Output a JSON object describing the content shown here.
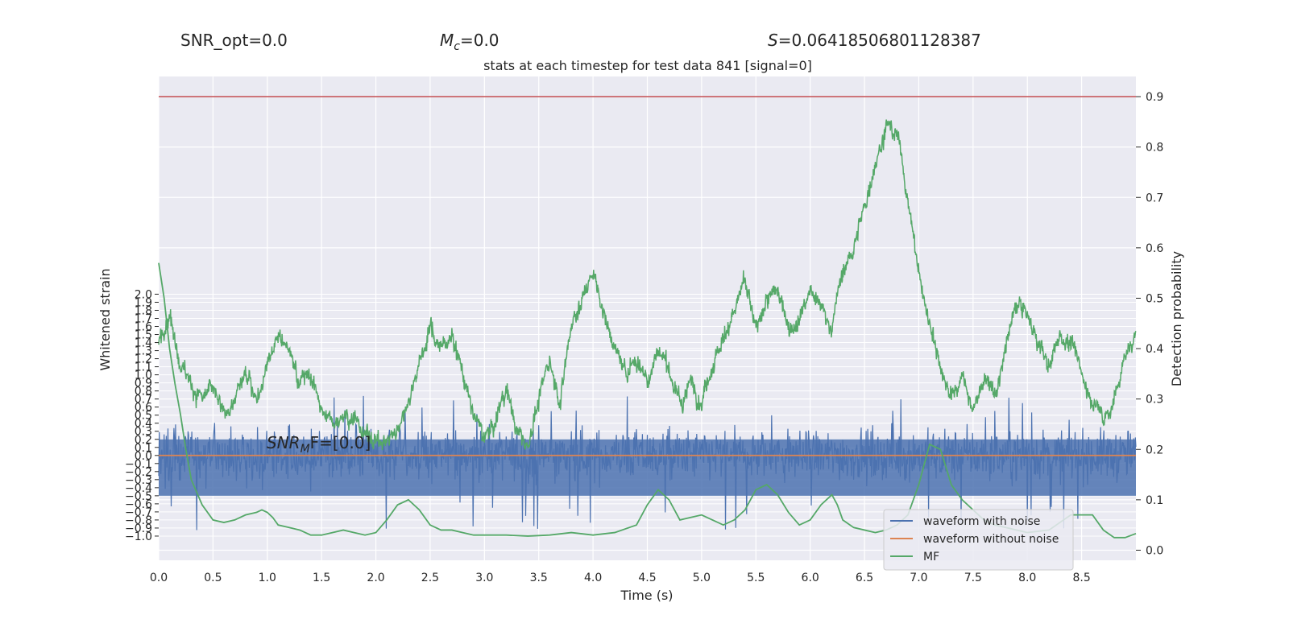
{
  "header": {
    "snr_opt": "SNR_opt=0.0",
    "mc_symbol": "M",
    "mc_sub": "c",
    "mc_value": "=0.0",
    "s_symbol": "S",
    "s_value": "=0.06418506801128387"
  },
  "chart_data": {
    "type": "line",
    "title": "stats at each timestep for test data 841 [signal=0]",
    "xlabel": "Time (s)",
    "ylabel_left": "Whitened strain",
    "ylabel_right": "Detection probability",
    "annotation": {
      "base": "SNR",
      "sub": "M",
      "tail": "F=[0.0]"
    },
    "xlim": [
      0.0,
      9.0
    ],
    "ylim_left": [
      -1.3,
      4.7
    ],
    "ylim_right": [
      -0.02,
      0.94
    ],
    "x_ticks": [
      "0.0",
      "0.5",
      "1.0",
      "1.5",
      "2.0",
      "2.5",
      "3.0",
      "3.5",
      "4.0",
      "4.5",
      "5.0",
      "5.5",
      "6.0",
      "6.5",
      "7.0",
      "7.5",
      "8.0",
      "8.5"
    ],
    "left_ticks": [
      "-1.0",
      "-0.9",
      "-0.8",
      "-0.7",
      "-0.6",
      "-0.5",
      "-0.4",
      "-0.3",
      "-0.2",
      "-0.1",
      "0.0",
      "0.1",
      "0.2",
      "0.3",
      "0.4",
      "0.5",
      "0.6",
      "0.7",
      "0.8",
      "0.9",
      "1.0",
      "1.1",
      "1.2",
      "1.3",
      "1.4",
      "1.5",
      "1.6",
      "1.7",
      "1.8",
      "1.9",
      "2.0"
    ],
    "right_ticks": [
      "0.0",
      "0.1",
      "0.2",
      "0.3",
      "0.4",
      "0.5",
      "0.6",
      "0.7",
      "0.8",
      "0.9"
    ],
    "threshold": 0.9,
    "legend": {
      "placement": "lower-right",
      "entries": [
        "waveform with noise",
        "waveform without noise",
        "MF"
      ]
    },
    "grid": true,
    "colors": {
      "noisy": "#4c72b0",
      "clean": "#dd8452",
      "mf": "#55a868",
      "threshold": "#c44e52",
      "background": "#eaeaf2"
    },
    "series": [
      {
        "name": "waveform with noise",
        "axis": "left",
        "kind": "dense-noise",
        "typical_range": [
          -0.35,
          0.35
        ],
        "peak_range": [
          -0.95,
          0.75
        ]
      },
      {
        "name": "waveform without noise",
        "axis": "left",
        "x": [
          0.0,
          9.0
        ],
        "y": [
          0.0,
          0.0
        ]
      },
      {
        "name": "MF",
        "axis": "right",
        "x": [
          0.0,
          0.05,
          0.1,
          0.15,
          0.2,
          0.25,
          0.3,
          0.4,
          0.5,
          0.6,
          0.7,
          0.8,
          0.9,
          0.95,
          1.0,
          1.05,
          1.1,
          1.2,
          1.3,
          1.4,
          1.5,
          1.6,
          1.7,
          1.8,
          1.9,
          2.0,
          2.1,
          2.2,
          2.3,
          2.4,
          2.5,
          2.6,
          2.7,
          2.8,
          2.9,
          3.0,
          3.2,
          3.4,
          3.6,
          3.8,
          4.0,
          4.2,
          4.4,
          4.5,
          4.6,
          4.7,
          4.8,
          4.9,
          5.0,
          5.1,
          5.2,
          5.3,
          5.4,
          5.5,
          5.6,
          5.7,
          5.8,
          5.9,
          6.0,
          6.1,
          6.2,
          6.25,
          6.3,
          6.4,
          6.5,
          6.6,
          6.7,
          6.8,
          6.9,
          7.0,
          7.1,
          7.2,
          7.3,
          7.4,
          7.5,
          7.6,
          7.7,
          7.8,
          7.9,
          8.0,
          8.2,
          8.4,
          8.6,
          8.7,
          8.8,
          8.9,
          9.0
        ],
        "y": [
          0.57,
          0.5,
          0.4,
          0.33,
          0.27,
          0.2,
          0.14,
          0.09,
          0.06,
          0.055,
          0.06,
          0.07,
          0.075,
          0.08,
          0.075,
          0.065,
          0.05,
          0.045,
          0.04,
          0.03,
          0.03,
          0.035,
          0.04,
          0.035,
          0.03,
          0.035,
          0.06,
          0.09,
          0.1,
          0.08,
          0.05,
          0.04,
          0.04,
          0.035,
          0.03,
          0.03,
          0.03,
          0.028,
          0.03,
          0.035,
          0.03,
          0.035,
          0.05,
          0.09,
          0.12,
          0.1,
          0.06,
          0.065,
          0.07,
          0.06,
          0.05,
          0.06,
          0.08,
          0.12,
          0.13,
          0.11,
          0.075,
          0.05,
          0.06,
          0.09,
          0.11,
          0.09,
          0.06,
          0.045,
          0.04,
          0.035,
          0.04,
          0.05,
          0.07,
          0.13,
          0.21,
          0.2,
          0.13,
          0.1,
          0.08,
          0.06,
          0.05,
          0.045,
          0.04,
          0.035,
          0.04,
          0.07,
          0.07,
          0.04,
          0.025,
          0.025,
          0.033
        ]
      },
      {
        "name": "detection probability",
        "axis": "right",
        "kind": "noisy-probability",
        "x": [
          0.0,
          0.1,
          0.2,
          0.3,
          0.4,
          0.5,
          0.6,
          0.7,
          0.8,
          0.9,
          1.0,
          1.1,
          1.2,
          1.3,
          1.4,
          1.5,
          1.6,
          1.7,
          1.8,
          1.9,
          2.0,
          2.1,
          2.2,
          2.3,
          2.4,
          2.5,
          2.6,
          2.7,
          2.8,
          2.9,
          3.0,
          3.1,
          3.2,
          3.3,
          3.4,
          3.5,
          3.6,
          3.7,
          3.8,
          3.9,
          4.0,
          4.1,
          4.2,
          4.3,
          4.4,
          4.5,
          4.6,
          4.7,
          4.8,
          4.9,
          5.0,
          5.1,
          5.2,
          5.3,
          5.4,
          5.5,
          5.6,
          5.7,
          5.8,
          5.9,
          6.0,
          6.1,
          6.2,
          6.3,
          6.4,
          6.5,
          6.6,
          6.7,
          6.8,
          6.9,
          7.0,
          7.1,
          7.2,
          7.3,
          7.4,
          7.5,
          7.6,
          7.7,
          7.8,
          7.9,
          8.0,
          8.1,
          8.2,
          8.3,
          8.4,
          8.5,
          8.6,
          8.7,
          8.8,
          8.9,
          9.0
        ],
        "y": [
          0.42,
          0.47,
          0.38,
          0.33,
          0.3,
          0.32,
          0.26,
          0.3,
          0.35,
          0.3,
          0.38,
          0.43,
          0.4,
          0.34,
          0.35,
          0.28,
          0.25,
          0.28,
          0.26,
          0.23,
          0.22,
          0.21,
          0.24,
          0.3,
          0.38,
          0.44,
          0.4,
          0.43,
          0.35,
          0.27,
          0.22,
          0.25,
          0.33,
          0.23,
          0.21,
          0.3,
          0.38,
          0.3,
          0.45,
          0.5,
          0.55,
          0.47,
          0.4,
          0.35,
          0.38,
          0.34,
          0.4,
          0.36,
          0.29,
          0.34,
          0.3,
          0.37,
          0.42,
          0.48,
          0.53,
          0.43,
          0.5,
          0.51,
          0.45,
          0.46,
          0.51,
          0.48,
          0.45,
          0.55,
          0.6,
          0.68,
          0.78,
          0.84,
          0.83,
          0.7,
          0.55,
          0.45,
          0.37,
          0.3,
          0.34,
          0.28,
          0.34,
          0.3,
          0.4,
          0.49,
          0.46,
          0.41,
          0.36,
          0.43,
          0.41,
          0.35,
          0.3,
          0.26,
          0.3,
          0.38,
          0.44
        ]
      }
    ]
  }
}
